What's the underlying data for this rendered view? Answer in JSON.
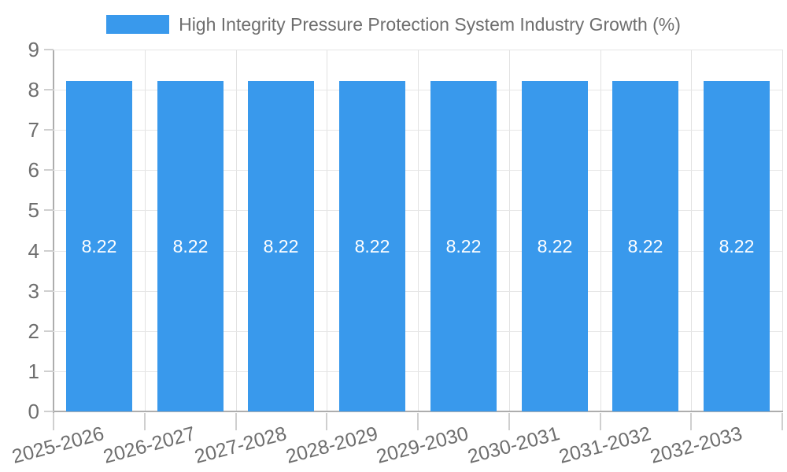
{
  "legend": {
    "position": "top"
  },
  "chart_data": {
    "type": "bar",
    "title": "High Integrity Pressure Protection System Industry Growth (%)",
    "categories": [
      "2025-2026",
      "2026-2027",
      "2027-2028",
      "2028-2029",
      "2029-2030",
      "2030-2031",
      "2031-2032",
      "2032-2033"
    ],
    "values": [
      8.22,
      8.22,
      8.22,
      8.22,
      8.22,
      8.22,
      8.22,
      8.22
    ],
    "value_labels": [
      "8.22",
      "8.22",
      "8.22",
      "8.22",
      "8.22",
      "8.22",
      "8.22",
      "8.22"
    ],
    "xlabel": "",
    "ylabel": "",
    "ylim": [
      0,
      9
    ],
    "y_ticks": [
      0,
      1,
      2,
      3,
      4,
      5,
      6,
      7,
      8,
      9
    ],
    "grid": true,
    "legend_position": "top",
    "colors": {
      "bar": "#3999EC",
      "bar_value_text": "#FFFFFF",
      "axis_text": "#6E6E6E",
      "axis_line": "#ADADAD",
      "gridline_h": "#E6E6E6",
      "gridline_v": "#E2E2E2",
      "tick": "#CFCFCF"
    }
  }
}
